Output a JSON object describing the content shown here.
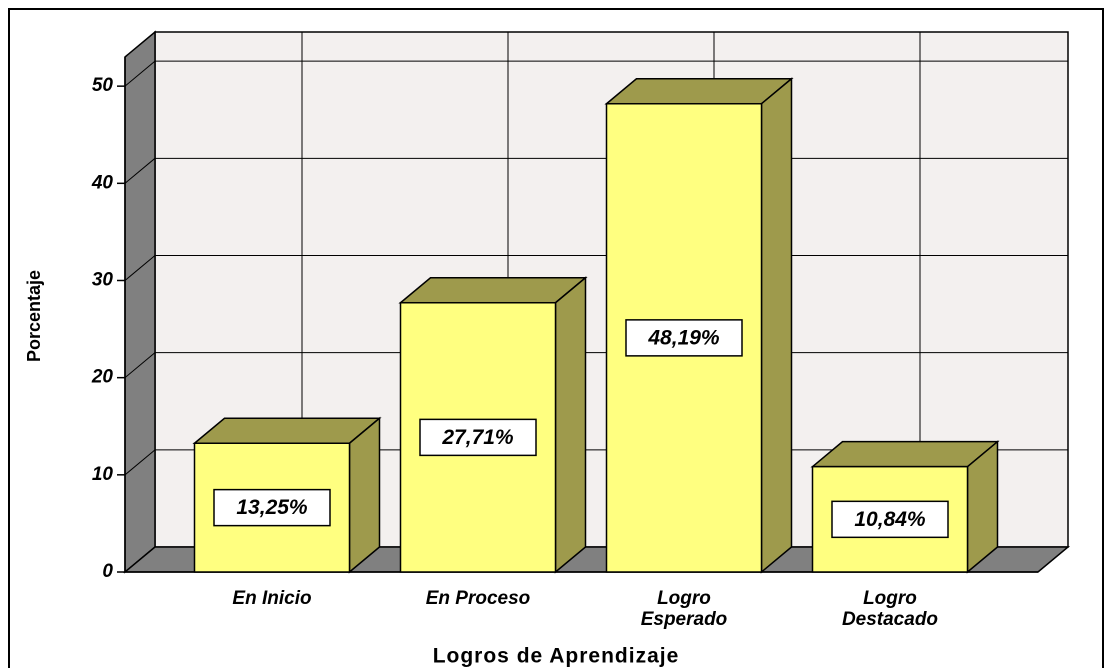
{
  "chart_data": {
    "type": "bar3d",
    "x_label": "Logros de Aprendizaje",
    "y_label": "Porcentaje",
    "categories": [
      "En Inicio",
      "En Proceso",
      "Logro\nEsperado",
      "Logro\nDestacado"
    ],
    "values": [
      13.25,
      27.71,
      48.19,
      10.84
    ],
    "value_labels": [
      "13,25%",
      "27,71%",
      "48,19%",
      "10,84%"
    ],
    "color": "#ffff80",
    "ylim": [
      0,
      53
    ],
    "yticks": [
      0,
      10,
      20,
      30,
      40,
      50
    ],
    "grid": true
  }
}
